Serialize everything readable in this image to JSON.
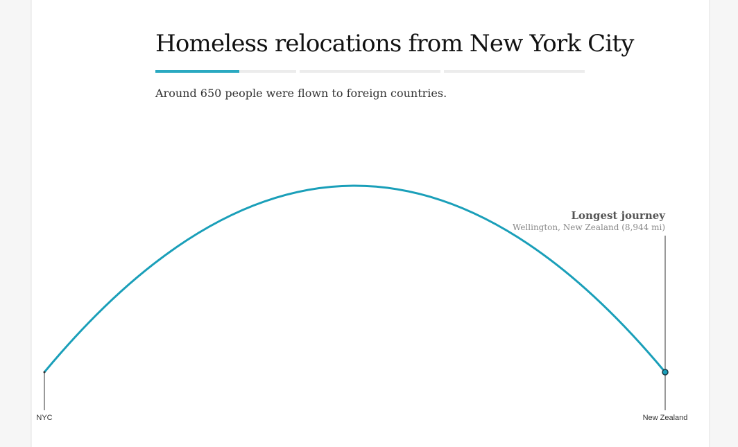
{
  "header": {
    "title": "Homeless relocations from New York City",
    "subtitle": "Around 650 people were flown to foreign countries."
  },
  "annotation": {
    "title": "Longest journey",
    "detail": "Wellington, New Zealand (8,944 mi)"
  },
  "endpoints": {
    "origin": "NYC",
    "destination": "New Zealand"
  }
}
